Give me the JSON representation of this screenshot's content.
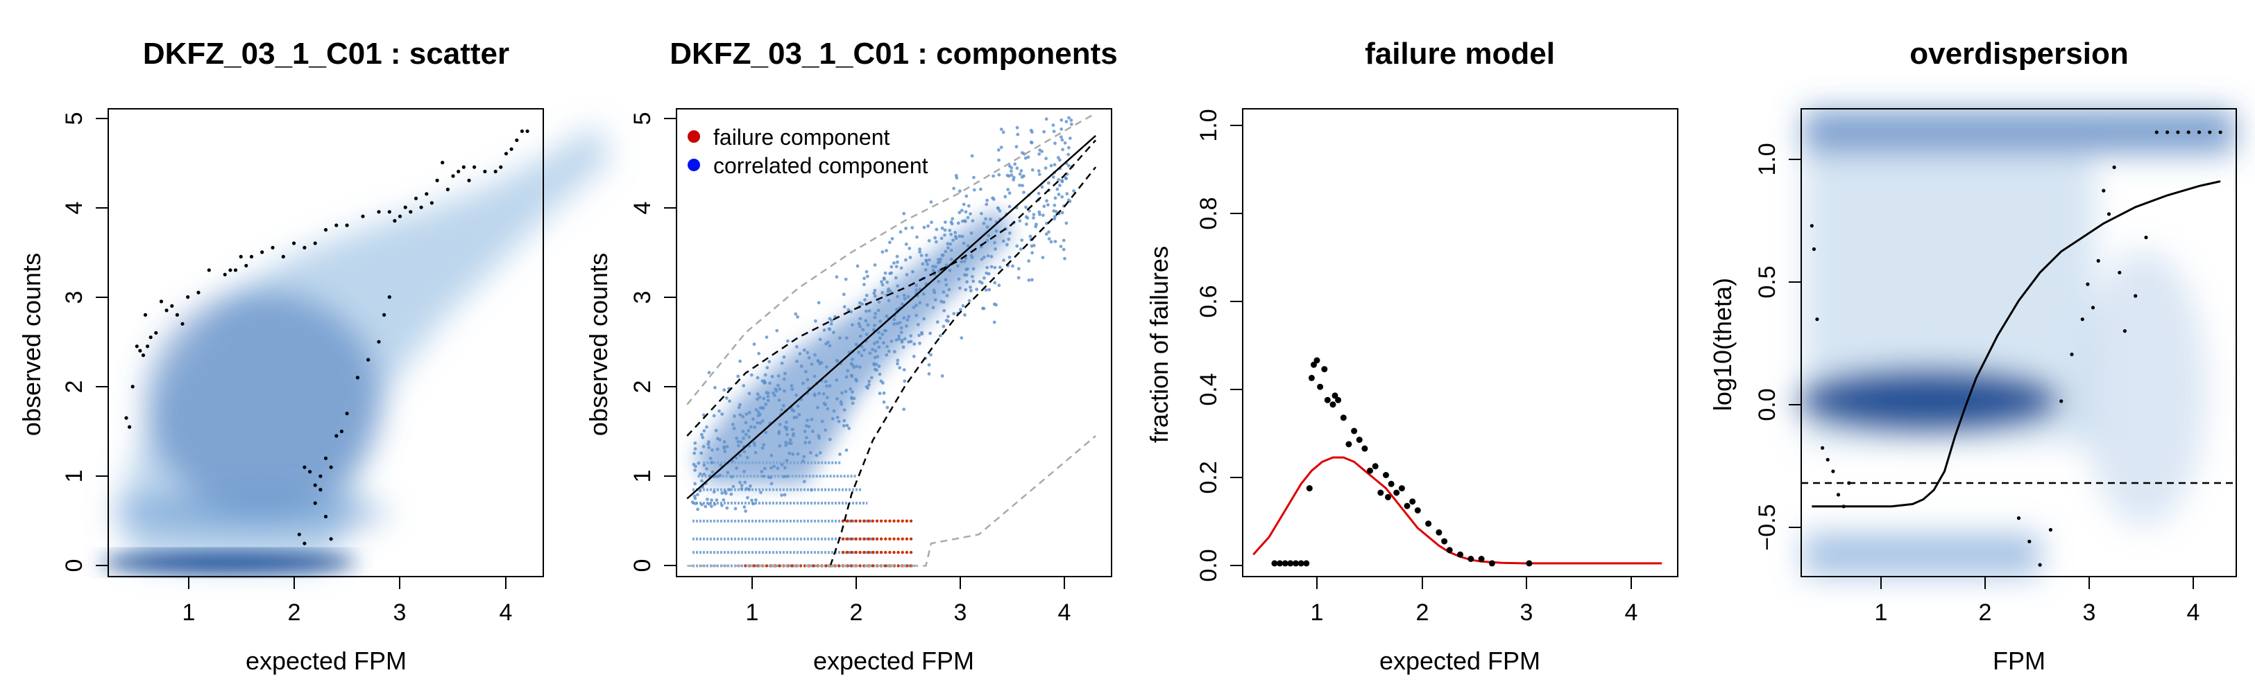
{
  "chart_data": [
    {
      "type": "scatter",
      "title": "DKFZ_03_1_C01 : scatter",
      "xlabel": "expected FPM",
      "ylabel": "observed counts",
      "xlim": [
        0.35,
        4.45
      ],
      "ylim": [
        -0.12,
        5.1
      ],
      "xticks": [
        "1",
        "2",
        "3",
        "4"
      ],
      "yticks": [
        "0",
        "1",
        "2",
        "3",
        "4",
        "5"
      ],
      "density": "smoothed scatter (blue density) of observed vs expected, dense core near x≈1–2, y≈0 band",
      "series": [
        {
          "x": [
            0.52,
            0.55,
            0.58,
            0.62,
            0.65,
            0.68,
            0.7,
            0.72,
            0.75,
            0.8,
            0.85,
            0.9,
            0.95,
            1.0,
            1.05,
            1.1,
            1.2,
            1.3,
            1.45,
            1.5,
            1.55,
            1.6,
            1.65,
            1.7,
            1.8,
            1.9,
            2.0,
            2.1,
            2.2,
            2.3,
            2.4,
            2.5,
            2.6,
            2.75,
            2.9,
            3.0,
            3.05,
            3.1,
            3.15,
            3.2,
            3.25,
            3.3,
            3.35,
            3.4,
            3.45,
            3.5,
            3.55,
            3.6,
            3.65,
            3.7,
            3.75,
            3.8,
            3.9,
            4.0,
            4.05,
            4.1,
            4.15,
            4.2,
            4.25,
            4.3,
            2.2,
            2.25,
            2.3,
            2.35,
            2.4,
            2.45,
            2.5,
            2.55,
            2.6,
            2.7,
            2.8,
            2.9,
            2.95,
            3.0,
            2.15,
            2.2,
            2.3,
            2.35,
            2.4,
            2.45
          ],
          "y": [
            1.65,
            1.55,
            2.0,
            2.45,
            2.4,
            2.35,
            2.8,
            2.45,
            2.55,
            2.6,
            2.95,
            2.85,
            2.9,
            2.8,
            2.7,
            3.0,
            3.05,
            3.3,
            3.25,
            3.3,
            3.3,
            3.45,
            3.35,
            3.45,
            3.5,
            3.55,
            3.45,
            3.6,
            3.55,
            3.6,
            3.75,
            3.8,
            3.8,
            3.9,
            3.95,
            3.95,
            3.85,
            3.9,
            4.0,
            3.95,
            4.1,
            4.0,
            4.15,
            4.05,
            4.3,
            4.5,
            4.2,
            4.35,
            4.4,
            4.45,
            4.3,
            4.45,
            4.4,
            4.4,
            4.45,
            4.6,
            4.65,
            4.75,
            4.85,
            4.85,
            1.1,
            1.05,
            0.9,
            1.0,
            1.2,
            1.1,
            1.45,
            1.5,
            1.7,
            2.1,
            2.3,
            2.5,
            2.8,
            3.0,
            0.35,
            0.25,
            0.7,
            0.85,
            0.55,
            0.3
          ]
        }
      ]
    },
    {
      "type": "scatter",
      "title": "DKFZ_03_1_C01 : components",
      "xlabel": "expected FPM",
      "ylabel": "observed counts",
      "xlim": [
        0.35,
        4.45
      ],
      "ylim": [
        -0.12,
        5.1
      ],
      "xticks": [
        "1",
        "2",
        "3",
        "4"
      ],
      "yticks": [
        "0",
        "1",
        "2",
        "3",
        "4",
        "5"
      ],
      "legend": {
        "position": "top-left",
        "entries": [
          {
            "label": "failure component",
            "color": "#cc0000"
          },
          {
            "label": "correlated component",
            "color": "#0011ee"
          }
        ]
      },
      "lines": [
        {
          "style": "solid",
          "x": [
            0.45,
            4.3
          ],
          "y": [
            0.75,
            4.8
          ]
        },
        {
          "style": "dashed",
          "x": [
            0.45,
            1.0,
            1.5,
            2.0,
            2.5,
            3.0,
            3.5,
            4.0,
            4.3
          ],
          "y": [
            1.45,
            2.15,
            2.55,
            2.85,
            3.1,
            3.4,
            3.8,
            4.35,
            4.75
          ]
        },
        {
          "style": "dashed",
          "x": [
            1.8,
            1.9,
            2.0,
            2.2,
            2.5,
            2.8,
            3.0,
            3.5,
            4.0,
            4.3
          ],
          "y": [
            0.0,
            0.35,
            0.8,
            1.4,
            2.0,
            2.5,
            2.8,
            3.4,
            4.0,
            4.45
          ]
        },
        {
          "style": "dashed-gray",
          "x": [
            0.45,
            1.0,
            1.5,
            2.0,
            2.5,
            3.0,
            3.5,
            4.0,
            4.3
          ],
          "y": [
            1.8,
            2.6,
            3.1,
            3.5,
            3.85,
            4.15,
            4.5,
            4.85,
            5.05
          ]
        },
        {
          "style": "dashed-gray",
          "x": [
            0.45,
            2.7,
            2.75,
            3.2,
            3.6,
            4.0,
            4.3
          ],
          "y": [
            0.0,
            0.0,
            0.25,
            0.35,
            0.75,
            1.15,
            1.45
          ]
        }
      ],
      "failure_points": {
        "color": "#cc3300",
        "x_range": [
          1.0,
          2.6
        ],
        "y_levels": [
          0,
          0.15,
          0.3,
          0.5
        ]
      },
      "correlated_points": {
        "color": "#5b8fc9",
        "density": "point cloud along diagonal plus horizontal bands at low integer counts"
      }
    },
    {
      "type": "line",
      "title": "failure model",
      "xlabel": "expected FPM",
      "ylabel": "fraction of failures",
      "xlim": [
        0.35,
        4.45
      ],
      "ylim": [
        -0.03,
        1.03
      ],
      "xticks": [
        "1",
        "2",
        "3",
        "4"
      ],
      "yticks": [
        "0.0",
        "0.2",
        "0.4",
        "0.6",
        "0.8",
        "1.0"
      ],
      "series": [
        {
          "style": "points",
          "color": "#000000",
          "x": [
            0.65,
            0.7,
            0.75,
            0.8,
            0.85,
            0.9,
            0.95,
            0.98,
            1.0,
            1.02,
            1.05,
            1.08,
            1.12,
            1.15,
            1.2,
            1.22,
            1.25,
            1.3,
            1.35,
            1.4,
            1.45,
            1.5,
            1.55,
            1.6,
            1.65,
            1.7,
            1.72,
            1.75,
            1.8,
            1.85,
            1.9,
            1.95,
            2.0,
            2.1,
            2.2,
            2.25,
            2.3,
            2.4,
            2.5,
            2.6,
            2.7,
            3.05
          ],
          "y": [
            0.0,
            0.0,
            0.0,
            0.0,
            0.0,
            0.0,
            0.0,
            0.17,
            0.42,
            0.45,
            0.46,
            0.4,
            0.44,
            0.37,
            0.36,
            0.38,
            0.37,
            0.33,
            0.27,
            0.3,
            0.28,
            0.26,
            0.21,
            0.22,
            0.16,
            0.2,
            0.15,
            0.18,
            0.16,
            0.17,
            0.13,
            0.14,
            0.12,
            0.09,
            0.07,
            0.05,
            0.03,
            0.02,
            0.01,
            0.01,
            0.0,
            0.0
          ]
        },
        {
          "style": "line",
          "color": "#dd0000",
          "x": [
            0.45,
            0.6,
            0.75,
            0.9,
            1.0,
            1.1,
            1.2,
            1.3,
            1.4,
            1.5,
            1.6,
            1.7,
            1.8,
            1.9,
            2.0,
            2.1,
            2.2,
            2.3,
            2.4,
            2.5,
            2.6,
            2.8,
            3.0,
            3.5,
            4.0,
            4.3
          ],
          "y": [
            0.02,
            0.06,
            0.12,
            0.18,
            0.21,
            0.23,
            0.24,
            0.24,
            0.23,
            0.21,
            0.19,
            0.17,
            0.14,
            0.11,
            0.08,
            0.06,
            0.04,
            0.025,
            0.015,
            0.008,
            0.004,
            0.001,
            0.0,
            0.0,
            0.0,
            0.0
          ]
        }
      ]
    },
    {
      "type": "line",
      "title": "overdispersion",
      "xlabel": "FPM",
      "ylabel": "log10(theta)",
      "xlim": [
        0.35,
        4.45
      ],
      "ylim": [
        -0.75,
        1.25
      ],
      "xticks": [
        "1",
        "2",
        "3",
        "4"
      ],
      "yticks": [
        "−0.5",
        "0.0",
        "0.5",
        "1.0"
      ],
      "hline": {
        "y": -0.35,
        "style": "dashed"
      },
      "density": "smoothed density bands at log10(theta) ≈ 1.15, 0.0 and -0.65",
      "series": [
        {
          "style": "line",
          "color": "#000000",
          "x": [
            0.45,
            0.8,
            1.2,
            1.4,
            1.5,
            1.6,
            1.7,
            1.8,
            1.9,
            2.0,
            2.2,
            2.4,
            2.6,
            2.8,
            3.0,
            3.2,
            3.5,
            3.8,
            4.1,
            4.3
          ],
          "y": [
            -0.45,
            -0.45,
            -0.45,
            -0.44,
            -0.42,
            -0.38,
            -0.3,
            -0.15,
            -0.02,
            0.1,
            0.28,
            0.43,
            0.55,
            0.64,
            0.7,
            0.76,
            0.83,
            0.88,
            0.92,
            0.94
          ]
        },
        {
          "style": "points",
          "color": "#000000",
          "x": [
            0.45,
            0.47,
            0.5,
            0.55,
            0.6,
            0.65,
            0.7,
            0.75,
            0.8,
            2.4,
            2.5,
            2.6,
            2.7,
            2.8,
            2.9,
            3.0,
            3.05,
            3.1,
            3.15,
            3.2,
            3.25,
            3.3,
            3.35,
            3.4,
            3.5,
            3.6,
            3.7,
            3.8,
            3.9,
            4.0,
            4.1,
            4.2,
            4.3
          ],
          "y": [
            0.75,
            0.65,
            0.35,
            -0.2,
            -0.25,
            -0.3,
            -0.4,
            -0.45,
            -0.35,
            -0.5,
            -0.6,
            -0.7,
            -0.55,
            0.0,
            0.2,
            0.35,
            0.5,
            0.4,
            0.6,
            0.9,
            0.8,
            1.0,
            0.55,
            0.3,
            0.45,
            0.7,
            1.15,
            1.15,
            1.15,
            1.15,
            1.15,
            1.15,
            1.15
          ]
        }
      ]
    }
  ]
}
